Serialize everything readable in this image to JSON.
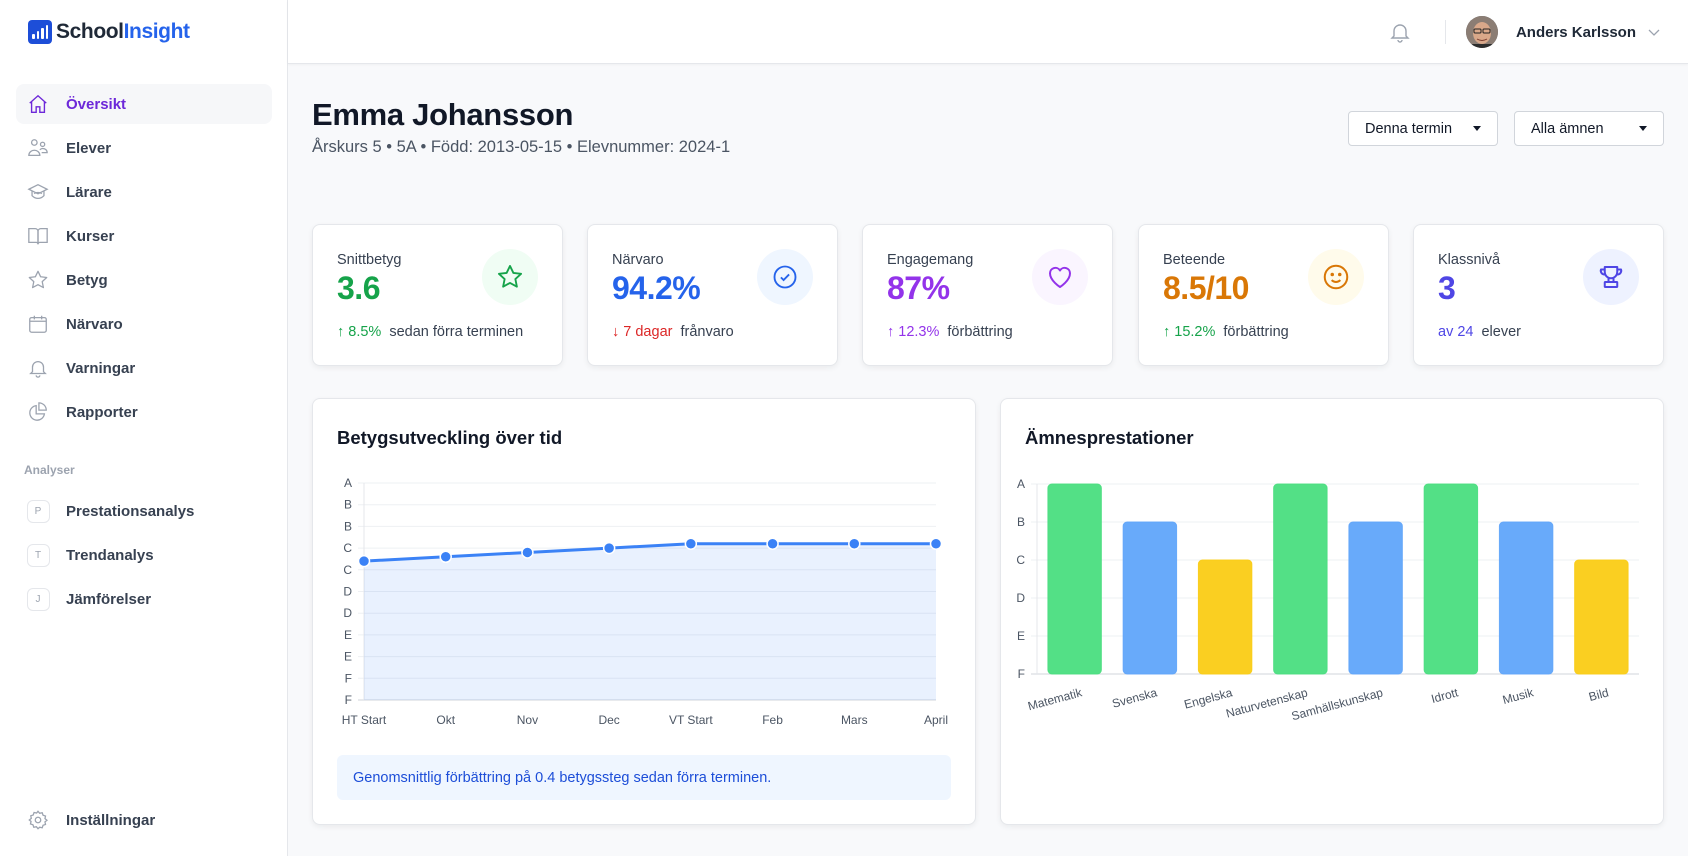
{
  "app": {
    "logo_part1": "School",
    "logo_part2": "Insight"
  },
  "sidebar": {
    "items": [
      {
        "label": "Översikt",
        "icon": "home-icon",
        "active": true
      },
      {
        "label": "Elever",
        "icon": "users-icon"
      },
      {
        "label": "Lärare",
        "icon": "graduation-cap-icon"
      },
      {
        "label": "Kurser",
        "icon": "book-icon"
      },
      {
        "label": "Betyg",
        "icon": "star-icon"
      },
      {
        "label": "Närvaro",
        "icon": "calendar-icon"
      },
      {
        "label": "Varningar",
        "icon": "bell-icon"
      },
      {
        "label": "Rapporter",
        "icon": "pie-chart-icon"
      }
    ],
    "section_label": "Analyser",
    "analyses": [
      {
        "letter": "P",
        "label": "Prestationsanalys"
      },
      {
        "letter": "T",
        "label": "Trendanalys"
      },
      {
        "letter": "J",
        "label": "Jämförelser"
      }
    ],
    "settings_label": "Inställningar"
  },
  "header": {
    "user_name": "Anders Karlsson"
  },
  "student": {
    "name": "Emma Johansson",
    "meta": "Årskurs 5 • 5A • Född: 2013-05-15 • Elevnummer: 2024-1"
  },
  "filters": {
    "term": "Denna termin",
    "subject": "Alla ämnen"
  },
  "stats": [
    {
      "label": "Snittbetyg",
      "value": "3.6",
      "change": "↑ 8.5%",
      "rest": "sedan förra terminen",
      "color": "#16a34a",
      "change_color": "#16a34a",
      "bg": "#f0fdf4",
      "icon": "star-icon"
    },
    {
      "label": "Närvaro",
      "value": "94.2%",
      "change": "↓ 7 dagar",
      "rest": "frånvaro",
      "color": "#2563eb",
      "change_color": "#dc2626",
      "bg": "#eff6ff",
      "icon": "check-circle-icon"
    },
    {
      "label": "Engagemang",
      "value": "87%",
      "change": "↑ 12.3%",
      "rest": "förbättring",
      "color": "#9333ea",
      "change_color": "#9333ea",
      "bg": "#faf5ff",
      "icon": "heart-icon"
    },
    {
      "label": "Beteende",
      "value": "8.5/10",
      "change": "↑ 15.2%",
      "rest": "förbättring",
      "color": "#d97706",
      "change_color": "#16a34a",
      "bg": "#fffbeb",
      "icon": "smile-icon"
    },
    {
      "label": "Klassnivå",
      "value": "3",
      "change": "av 24",
      "rest": "elever",
      "color": "#4f46e5",
      "change_color": "#4f46e5",
      "bg": "#eef2ff",
      "icon": "trophy-icon"
    }
  ],
  "line_panel": {
    "info": "Genomsnittlig förbättring på 0.4 betygssteg sedan förra terminen."
  },
  "chart_data": [
    {
      "type": "line",
      "title": "Betygsutveckling över tid",
      "x": [
        "HT Start",
        "Okt",
        "Nov",
        "Dec",
        "VT Start",
        "Feb",
        "Mars",
        "April"
      ],
      "series": [
        {
          "name": "Snittbetyg",
          "values": [
            3.2,
            3.3,
            3.4,
            3.5,
            3.6,
            3.6,
            3.6,
            3.6
          ],
          "color": "#3b82f6"
        }
      ],
      "ylim": [
        0,
        5
      ],
      "yticks": [
        0,
        0.5,
        1,
        1.5,
        2,
        2.5,
        3,
        3.5,
        4,
        4.5,
        5
      ],
      "ytick_labels": [
        "F",
        "F",
        "E",
        "E",
        "D",
        "D",
        "C",
        "C",
        "B",
        "B",
        "A"
      ],
      "xlabel": "",
      "ylabel": "",
      "grid": true,
      "fill": true,
      "legend": "none"
    },
    {
      "type": "bar",
      "title": "Ämnesprestationer",
      "categories": [
        "Matematik",
        "Svenska",
        "Engelska",
        "Naturvetenskap",
        "Samhällskunskap",
        "Idrott",
        "Musik",
        "Bild"
      ],
      "values": [
        5,
        4,
        3,
        5,
        4,
        5,
        4,
        3
      ],
      "grades": [
        "A",
        "B",
        "C",
        "A",
        "B",
        "A",
        "B",
        "C"
      ],
      "colors": {
        "A": "#4ade80",
        "B": "#60a5fa",
        "C": "#facc15"
      },
      "ylim": [
        0,
        5
      ],
      "yticks": [
        0,
        1,
        2,
        3,
        4,
        5
      ],
      "ytick_labels": [
        "F",
        "E",
        "D",
        "C",
        "B",
        "A"
      ],
      "xlabel": "",
      "ylabel": "",
      "grid": true,
      "legend": "none"
    }
  ]
}
